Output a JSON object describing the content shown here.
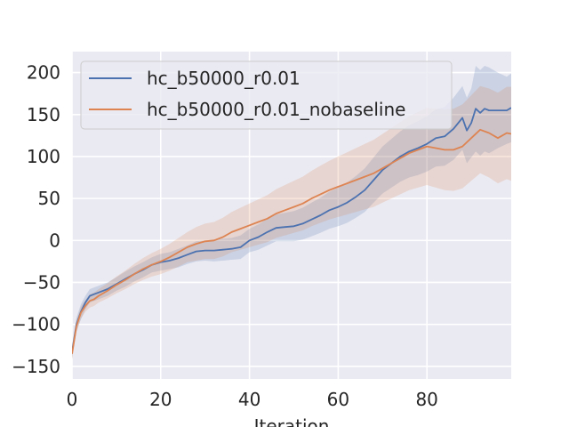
{
  "chart_data": {
    "type": "line",
    "title": "",
    "xlabel": "Iteration",
    "ylabel": "",
    "xlim": [
      0,
      99
    ],
    "ylim": [
      -165,
      225
    ],
    "x_ticks": [
      0,
      20,
      40,
      60,
      80
    ],
    "y_ticks": [
      -150,
      -100,
      -50,
      0,
      50,
      100,
      150,
      200
    ],
    "grid": true,
    "legend_position": "top-left",
    "style": "seaborn-darkgrid",
    "background_color": "#eaeaf2",
    "series": [
      {
        "name": "hc_b50000_r0.01",
        "color": "#4c72b0",
        "x": [
          0,
          1,
          2,
          3,
          4,
          5,
          6,
          8,
          10,
          12,
          14,
          16,
          18,
          20,
          22,
          24,
          26,
          28,
          30,
          32,
          34,
          36,
          38,
          40,
          42,
          44,
          46,
          48,
          50,
          52,
          54,
          56,
          58,
          60,
          62,
          64,
          66,
          68,
          70,
          72,
          74,
          76,
          78,
          80,
          82,
          84,
          86,
          88,
          89,
          90,
          91,
          92,
          93,
          94,
          96,
          98,
          99
        ],
        "y": [
          -133,
          -100,
          -85,
          -74,
          -66,
          -64,
          -62,
          -58,
          -52,
          -46,
          -40,
          -35,
          -29,
          -26,
          -24,
          -21,
          -17,
          -13,
          -12,
          -12,
          -11,
          -10,
          -8,
          0,
          4,
          10,
          15,
          16,
          17,
          20,
          25,
          30,
          36,
          40,
          45,
          52,
          60,
          72,
          84,
          92,
          100,
          106,
          110,
          115,
          122,
          124,
          133,
          146,
          131,
          140,
          157,
          152,
          157,
          155,
          155,
          155,
          158
        ],
        "band_upper": [
          -125,
          -92,
          -76,
          -66,
          -58,
          -56,
          -54,
          -50,
          -44,
          -37,
          -31,
          -26,
          -20,
          -16,
          -14,
          -10,
          -6,
          -1,
          0,
          1,
          2,
          3,
          6,
          14,
          19,
          26,
          31,
          33,
          35,
          39,
          45,
          51,
          58,
          63,
          69,
          77,
          86,
          99,
          112,
          121,
          130,
          137,
          142,
          148,
          156,
          159,
          170,
          184,
          170,
          181,
          208,
          203,
          208,
          206,
          200,
          195,
          199
        ],
        "band_lower": [
          -141,
          -108,
          -94,
          -82,
          -74,
          -72,
          -70,
          -66,
          -60,
          -55,
          -49,
          -44,
          -38,
          -36,
          -34,
          -32,
          -28,
          -25,
          -24,
          -25,
          -24,
          -23,
          -22,
          -14,
          -11,
          -6,
          -1,
          -1,
          -1,
          1,
          5,
          9,
          14,
          17,
          21,
          27,
          34,
          45,
          56,
          63,
          70,
          75,
          78,
          82,
          88,
          89,
          96,
          108,
          92,
          99,
          106,
          101,
          106,
          104,
          110,
          115,
          117
        ]
      },
      {
        "name": "hc_b50000_r0.01_nobaseline",
        "color": "#dd8452",
        "x": [
          0,
          1,
          2,
          3,
          4,
          5,
          6,
          8,
          10,
          12,
          14,
          16,
          18,
          20,
          22,
          24,
          26,
          28,
          30,
          32,
          34,
          36,
          38,
          40,
          42,
          44,
          46,
          48,
          50,
          52,
          54,
          56,
          58,
          60,
          62,
          64,
          66,
          68,
          70,
          72,
          74,
          76,
          78,
          80,
          82,
          84,
          86,
          88,
          90,
          92,
          94,
          96,
          98,
          99
        ],
        "y": [
          -135,
          -102,
          -86,
          -78,
          -72,
          -70,
          -66,
          -60,
          -53,
          -47,
          -40,
          -34,
          -29,
          -25,
          -20,
          -14,
          -8,
          -4,
          -1,
          0,
          4,
          10,
          14,
          18,
          22,
          26,
          32,
          36,
          40,
          44,
          50,
          55,
          60,
          64,
          68,
          72,
          76,
          80,
          86,
          92,
          98,
          104,
          108,
          112,
          110,
          108,
          108,
          112,
          122,
          132,
          128,
          122,
          128,
          127
        ],
        "band_upper": [
          -128,
          -95,
          -79,
          -71,
          -64,
          -62,
          -58,
          -51,
          -43,
          -36,
          -28,
          -21,
          -15,
          -10,
          -4,
          3,
          10,
          16,
          20,
          22,
          27,
          34,
          39,
          44,
          49,
          54,
          61,
          66,
          71,
          76,
          83,
          89,
          95,
          100,
          105,
          110,
          115,
          120,
          127,
          134,
          141,
          148,
          153,
          158,
          157,
          156,
          157,
          162,
          173,
          184,
          181,
          176,
          183,
          183
        ],
        "band_lower": [
          -142,
          -109,
          -93,
          -85,
          -80,
          -78,
          -74,
          -69,
          -63,
          -58,
          -52,
          -47,
          -43,
          -40,
          -36,
          -31,
          -26,
          -24,
          -22,
          -22,
          -19,
          -14,
          -11,
          -8,
          -5,
          -2,
          3,
          6,
          9,
          12,
          17,
          21,
          25,
          28,
          31,
          34,
          37,
          40,
          45,
          50,
          55,
          60,
          63,
          66,
          63,
          60,
          59,
          62,
          71,
          80,
          75,
          68,
          73,
          71
        ]
      }
    ]
  }
}
